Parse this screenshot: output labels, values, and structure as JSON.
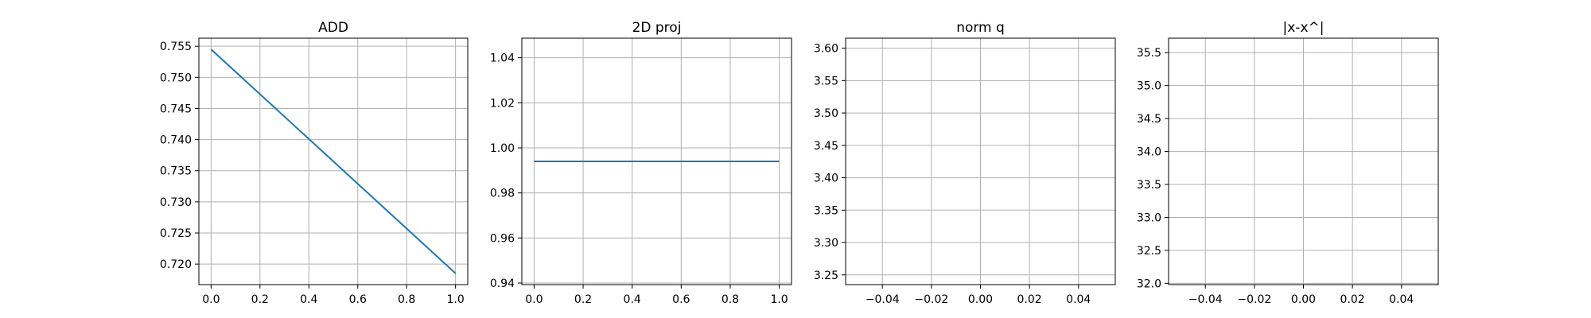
{
  "chart_data": [
    {
      "type": "line",
      "title": "ADD",
      "xlabel": "",
      "ylabel": "",
      "x": [
        0.0,
        1.0
      ],
      "series": [
        {
          "values": [
            0.7545,
            0.7185
          ],
          "color": "#1f77b4"
        }
      ],
      "xlim": [
        -0.05,
        1.05
      ],
      "ylim": [
        0.7167,
        0.7563
      ],
      "xticks": [
        0.0,
        0.2,
        0.4,
        0.6,
        0.8,
        1.0
      ],
      "xtick_labels": [
        "0.0",
        "0.2",
        "0.4",
        "0.6",
        "0.8",
        "1.0"
      ],
      "yticks": [
        0.72,
        0.725,
        0.73,
        0.735,
        0.74,
        0.745,
        0.75,
        0.755
      ],
      "ytick_labels": [
        "0.720",
        "0.725",
        "0.730",
        "0.735",
        "0.740",
        "0.745",
        "0.750",
        "0.755"
      ],
      "grid": true
    },
    {
      "type": "line",
      "title": "2D proj",
      "xlabel": "",
      "ylabel": "",
      "x": [
        0.0,
        1.0
      ],
      "series": [
        {
          "values": [
            0.994,
            0.994
          ],
          "color": "#1f77b4"
        }
      ],
      "xlim": [
        -0.05,
        1.05
      ],
      "ylim": [
        0.9393,
        1.0487
      ],
      "xticks": [
        0.0,
        0.2,
        0.4,
        0.6,
        0.8,
        1.0
      ],
      "xtick_labels": [
        "0.0",
        "0.2",
        "0.4",
        "0.6",
        "0.8",
        "1.0"
      ],
      "yticks": [
        0.94,
        0.96,
        0.98,
        1.0,
        1.02,
        1.04
      ],
      "ytick_labels": [
        "0.94",
        "0.96",
        "0.98",
        "1.00",
        "1.02",
        "1.04"
      ],
      "grid": true
    },
    {
      "type": "line",
      "title": "norm q",
      "xlabel": "",
      "ylabel": "",
      "x": [],
      "series": [
        {
          "values": [],
          "color": "#1f77b4"
        }
      ],
      "xlim": [
        -0.055,
        0.055
      ],
      "ylim": [
        3.235,
        3.6155
      ],
      "xticks": [
        -0.04,
        -0.02,
        0.0,
        0.02,
        0.04
      ],
      "xtick_labels": [
        "−0.04",
        "−0.02",
        "0.00",
        "0.02",
        "0.04"
      ],
      "yticks": [
        3.25,
        3.3,
        3.35,
        3.4,
        3.45,
        3.5,
        3.55,
        3.6
      ],
      "ytick_labels": [
        "3.25",
        "3.30",
        "3.35",
        "3.40",
        "3.45",
        "3.50",
        "3.55",
        "3.60"
      ],
      "grid": true
    },
    {
      "type": "line",
      "title": "|x-x^|",
      "xlabel": "",
      "ylabel": "",
      "x": [],
      "series": [
        {
          "values": [],
          "color": "#1f77b4"
        }
      ],
      "xlim": [
        -0.055,
        0.055
      ],
      "ylim": [
        31.98,
        35.72
      ],
      "xticks": [
        -0.04,
        -0.02,
        0.0,
        0.02,
        0.04
      ],
      "xtick_labels": [
        "−0.04",
        "−0.02",
        "0.00",
        "0.02",
        "0.04"
      ],
      "yticks": [
        32.0,
        32.5,
        33.0,
        33.5,
        34.0,
        34.5,
        35.0,
        35.5
      ],
      "ytick_labels": [
        "32.0",
        "32.5",
        "33.0",
        "33.5",
        "34.0",
        "34.5",
        "35.0",
        "35.5"
      ],
      "grid": true
    }
  ]
}
